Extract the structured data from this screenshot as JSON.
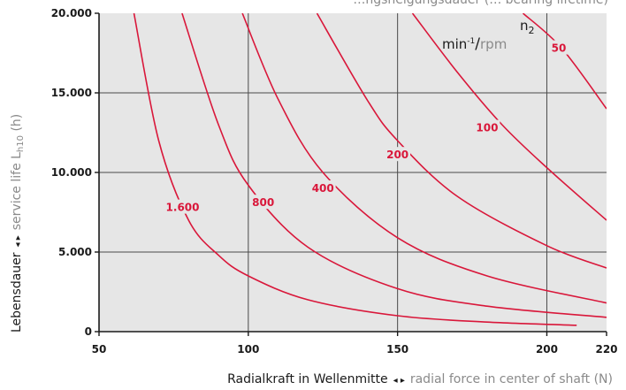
{
  "chart_data": {
    "type": "line",
    "title_partial": "…ngsneigungsdauer (… bearing lifetime)",
    "xlabel": {
      "de": "Radialkraft in Wellenmitte",
      "separator": "◂ ▸",
      "en": "radial force in center of shaft (N)"
    },
    "ylabel": {
      "de": "Lebensdauer",
      "separator": "◂ ▸",
      "en_prefix": "service life L",
      "en_sub": "h10",
      "en_suffix": " (h)"
    },
    "legend": {
      "line1": "n",
      "line1_sub": "2",
      "line2_main": "min",
      "line2_sup": "-1",
      "line2_sep": "/",
      "line2_grey": "rpm"
    },
    "xlim": [
      50,
      220
    ],
    "ylim": [
      0,
      20000
    ],
    "x_ticks": [
      {
        "value": 50,
        "label": "50"
      },
      {
        "value": 100,
        "label": "100"
      },
      {
        "value": 150,
        "label": "150"
      },
      {
        "value": 200,
        "label": "200"
      },
      {
        "value": 220,
        "label": "220"
      }
    ],
    "y_ticks": [
      {
        "value": 0,
        "label": "0"
      },
      {
        "value": 5000,
        "label": "5.000"
      },
      {
        "value": 10000,
        "label": "10.000"
      },
      {
        "value": 15000,
        "label": "15.000"
      },
      {
        "value": 20000,
        "label": "20.000"
      }
    ],
    "grid": true,
    "colors": {
      "plot_bg": "#e6e6e6",
      "grid": "#4a4a4a",
      "curve": "#d9173a",
      "axis": "#1a1a1a"
    },
    "series": [
      {
        "name": "1.600",
        "values": [
          [
            61.7,
            20000
          ],
          [
            70,
            12000
          ],
          [
            80,
            7000
          ],
          [
            90,
            4800
          ],
          [
            100,
            3500
          ],
          [
            120,
            2000
          ],
          [
            150,
            1000
          ],
          [
            180,
            600
          ],
          [
            210,
            400
          ]
        ],
        "label_at": [
          78,
          7800
        ]
      },
      {
        "name": "800",
        "values": [
          [
            77.8,
            20000
          ],
          [
            90,
            13000
          ],
          [
            100,
            9200
          ],
          [
            120,
            5300
          ],
          [
            150,
            2700
          ],
          [
            180,
            1600
          ],
          [
            220,
            900
          ]
        ],
        "label_at": [
          105,
          8100
        ]
      },
      {
        "name": "400",
        "values": [
          [
            98,
            20000
          ],
          [
            110,
            14600
          ],
          [
            125,
            10000
          ],
          [
            150,
            5900
          ],
          [
            180,
            3500
          ],
          [
            220,
            1800
          ]
        ],
        "label_at": [
          125,
          9000
        ]
      },
      {
        "name": "200",
        "values": [
          [
            123,
            20000
          ],
          [
            140,
            14500
          ],
          [
            150,
            12000
          ],
          [
            170,
            8500
          ],
          [
            200,
            5400
          ],
          [
            220,
            4000
          ]
        ],
        "label_at": [
          150,
          11100
        ]
      },
      {
        "name": "100",
        "values": [
          [
            155,
            20000
          ],
          [
            170,
            16300
          ],
          [
            185,
            13000
          ],
          [
            200,
            10300
          ],
          [
            220,
            7000
          ]
        ],
        "label_at": [
          180,
          12800
        ]
      },
      {
        "name": "50",
        "values": [
          [
            192,
            20000
          ],
          [
            205,
            17800
          ],
          [
            220,
            14000
          ]
        ],
        "label_at": [
          204,
          17800
        ]
      }
    ]
  }
}
